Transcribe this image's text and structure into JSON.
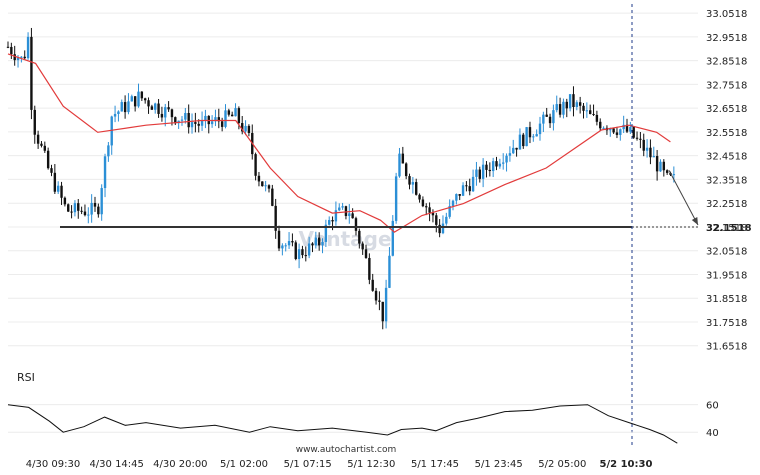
{
  "chart_data": {
    "type": "candlestick",
    "price_axis": {
      "ticks": [
        "33.0518",
        "32.9518",
        "32.8518",
        "32.7518",
        "32.6518",
        "32.5518",
        "32.4518",
        "32.3518",
        "32.2518",
        "32.1518",
        "32.0518",
        "31.9518",
        "31.8518",
        "31.7518",
        "31.6518"
      ],
      "range": [
        31.5918,
        33.0818
      ]
    },
    "time_axis": {
      "labels": [
        "4/30 09:30",
        "4/30 14:45",
        "4/30 20:00",
        "5/1 02:00",
        "5/1 07:15",
        "5/1 12:30",
        "5/1 17:45",
        "5/1 23:45",
        "5/2 05:00",
        "5/2 10:30"
      ]
    },
    "price_path": [
      [
        0,
        32.91
      ],
      [
        0.022,
        32.85
      ],
      [
        0.03,
        32.96
      ],
      [
        0.035,
        32.6
      ],
      [
        0.06,
        32.38
      ],
      [
        0.085,
        32.22
      ],
      [
        0.13,
        32.22
      ],
      [
        0.15,
        32.62
      ],
      [
        0.19,
        32.7
      ],
      [
        0.24,
        32.62
      ],
      [
        0.28,
        32.58
      ],
      [
        0.33,
        32.62
      ],
      [
        0.35,
        32.52
      ],
      [
        0.36,
        32.38
      ],
      [
        0.385,
        32.25
      ],
      [
        0.39,
        32.1
      ],
      [
        0.42,
        32.04
      ],
      [
        0.45,
        32.08
      ],
      [
        0.47,
        32.2
      ],
      [
        0.495,
        32.22
      ],
      [
        0.52,
        32.0
      ],
      [
        0.545,
        31.76
      ],
      [
        0.555,
        32.1
      ],
      [
        0.565,
        32.44
      ],
      [
        0.595,
        32.3
      ],
      [
        0.625,
        32.14
      ],
      [
        0.655,
        32.3
      ],
      [
        0.71,
        32.44
      ],
      [
        0.77,
        32.58
      ],
      [
        0.815,
        32.68
      ],
      [
        0.85,
        32.6
      ],
      [
        0.9,
        32.55
      ],
      [
        0.935,
        32.44
      ],
      [
        0.955,
        32.35
      ]
    ],
    "ma_path": [
      [
        0,
        32.88
      ],
      [
        0.04,
        32.84
      ],
      [
        0.08,
        32.66
      ],
      [
        0.13,
        32.55
      ],
      [
        0.2,
        32.58
      ],
      [
        0.28,
        32.6
      ],
      [
        0.33,
        32.6
      ],
      [
        0.38,
        32.4
      ],
      [
        0.42,
        32.28
      ],
      [
        0.47,
        32.21
      ],
      [
        0.51,
        32.22
      ],
      [
        0.54,
        32.18
      ],
      [
        0.56,
        32.13
      ],
      [
        0.6,
        32.2
      ],
      [
        0.66,
        32.25
      ],
      [
        0.72,
        32.33
      ],
      [
        0.78,
        32.4
      ],
      [
        0.82,
        32.48
      ],
      [
        0.86,
        32.56
      ],
      [
        0.9,
        32.58
      ],
      [
        0.94,
        32.55
      ],
      [
        0.96,
        32.51
      ]
    ],
    "support_level": 32.1518,
    "support_level_label": "32.1518",
    "forecast_arrow": {
      "from": [
        0.958,
        32.39
      ],
      "to": [
        1.0,
        32.16
      ]
    },
    "rsi": {
      "label": "RSI",
      "ticks": [
        "60",
        "40"
      ],
      "range": [
        30,
        75
      ],
      "path": [
        [
          0,
          60
        ],
        [
          0.03,
          58
        ],
        [
          0.06,
          48
        ],
        [
          0.08,
          40
        ],
        [
          0.11,
          44
        ],
        [
          0.14,
          51
        ],
        [
          0.17,
          45
        ],
        [
          0.2,
          47
        ],
        [
          0.25,
          43
        ],
        [
          0.3,
          45
        ],
        [
          0.35,
          40
        ],
        [
          0.38,
          44
        ],
        [
          0.42,
          41
        ],
        [
          0.47,
          43
        ],
        [
          0.52,
          40
        ],
        [
          0.55,
          38
        ],
        [
          0.57,
          42
        ],
        [
          0.6,
          43
        ],
        [
          0.62,
          41
        ],
        [
          0.65,
          47
        ],
        [
          0.68,
          50
        ],
        [
          0.72,
          55
        ],
        [
          0.76,
          56
        ],
        [
          0.8,
          59
        ],
        [
          0.84,
          60
        ],
        [
          0.87,
          52
        ],
        [
          0.9,
          47
        ],
        [
          0.93,
          42
        ],
        [
          0.95,
          38
        ],
        [
          0.97,
          32
        ]
      ]
    }
  },
  "watermark": "Vantage",
  "footer_url": "www.autochartist.com",
  "colors": {
    "bull": "#2b8fd6",
    "bear": "#111111",
    "ma": "#e23b3b",
    "support": "#333333",
    "axis_text": "#222222",
    "grid": "#ececec",
    "dashed_marker": "#1e3a8a",
    "watermark": "#d7dbe3"
  }
}
